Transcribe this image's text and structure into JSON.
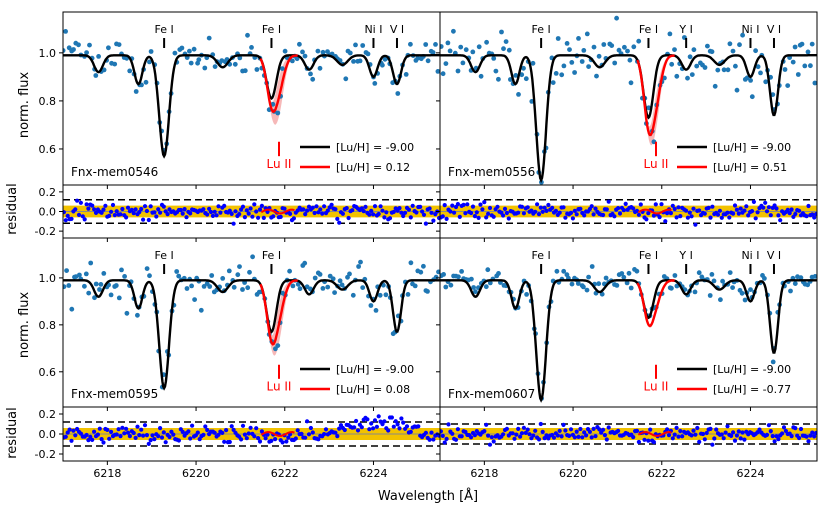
{
  "colors": {
    "model_black": "#000000",
    "model_red": "#ff0000",
    "lu_band": "#f4a6a6",
    "obs_points": "#1f77b4",
    "resid_points": "#0000ff",
    "resid_band": "#f2c200",
    "lu_label": "#ff0000"
  },
  "chart_data": {
    "type": "scatter",
    "description_of_panels": "2x2 grid of stellar spectra with residual sub-panels",
    "xlabel": "Wavelength [Å]",
    "xlim": [
      6217.0,
      6225.5
    ],
    "x_ticks": [
      "6218",
      "6220",
      "6222",
      "6224"
    ],
    "flux_ylabel": "norm. flux",
    "flux_ylim": [
      0.45,
      1.17
    ],
    "flux_ticks": [
      "0.6",
      "0.8",
      "1.0"
    ],
    "resid_ylabel": "residual",
    "resid_ylim": [
      -0.27,
      0.27
    ],
    "resid_ticks": [
      "0.2",
      "0.0",
      "-0.2"
    ],
    "lu_line": {
      "label": "Lu II",
      "wavelength": 6221.87
    },
    "panels": [
      {
        "star": "Fnx-mem0546",
        "legend": [
          "[Lu/H] = -9.00",
          "[Lu/H] =  0.12"
        ],
        "line_marks": [
          {
            "label": "Fe I",
            "x": 6219.28
          },
          {
            "label": "Fe I",
            "x": 6221.7
          },
          {
            "label": "Ni I",
            "x": 6224.0
          },
          {
            "label": "V I",
            "x": 6224.53
          }
        ],
        "resid_dash": 0.12
      },
      {
        "star": "Fnx-mem0556",
        "legend": [
          "[Lu/H] = -9.00",
          "[Lu/H] =  0.51"
        ],
        "line_marks": [
          {
            "label": "Fe I",
            "x": 6219.28
          },
          {
            "label": "Fe I",
            "x": 6221.7
          },
          {
            "label": "Y I",
            "x": 6222.55
          },
          {
            "label": "Ni I",
            "x": 6224.0
          },
          {
            "label": "V I",
            "x": 6224.53
          }
        ],
        "resid_dash": 0.12
      },
      {
        "star": "Fnx-mem0595",
        "legend": [
          "[Lu/H] = -9.00",
          "[Lu/H] =  0.08"
        ],
        "line_marks": [
          {
            "label": "Fe I",
            "x": 6219.28
          },
          {
            "label": "Fe I",
            "x": 6221.7
          }
        ],
        "resid_dash": 0.12
      },
      {
        "star": "Fnx-mem0607",
        "legend": [
          "[Lu/H] = -9.00",
          "[Lu/H] = -0.77"
        ],
        "line_marks": [
          {
            "label": "Fe I",
            "x": 6219.28
          },
          {
            "label": "Fe I",
            "x": 6221.7
          },
          {
            "label": "Y I",
            "x": 6222.55
          },
          {
            "label": "Ni I",
            "x": 6224.0
          },
          {
            "label": "V I",
            "x": 6224.53
          }
        ],
        "resid_dash": 0.1
      }
    ]
  }
}
